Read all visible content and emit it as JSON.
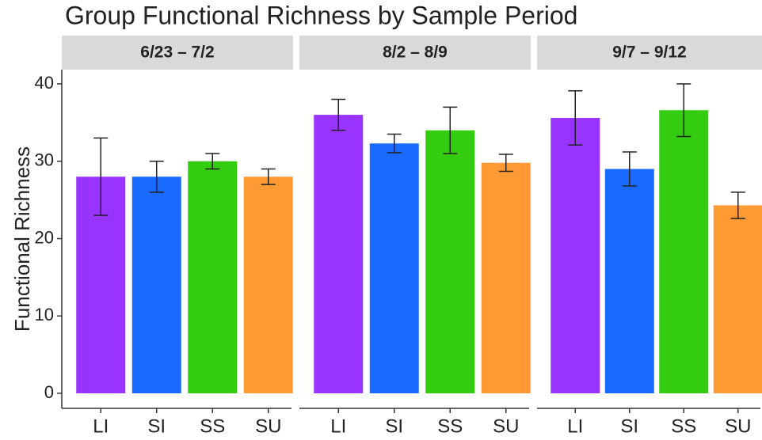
{
  "title": "Group Functional Richness by Sample Period",
  "y_label": "Functional Richness",
  "chart_data": [
    {
      "type": "bar",
      "title": "6/23 – 7/2",
      "categories": [
        "LI",
        "SI",
        "SS",
        "SU"
      ],
      "values": [
        28,
        28,
        30,
        28
      ],
      "errors": [
        5,
        2,
        1,
        1
      ],
      "colors": [
        "#9933ff",
        "#1a6aff",
        "#33cc11",
        "#ff9933"
      ],
      "ylim": [
        0,
        40
      ],
      "yticks": [
        0,
        10,
        20,
        30,
        40
      ]
    },
    {
      "type": "bar",
      "title": "8/2 – 8/9",
      "categories": [
        "LI",
        "SI",
        "SS",
        "SU"
      ],
      "values": [
        36,
        32.3,
        34,
        29.8
      ],
      "errors": [
        2,
        1.2,
        3,
        1.1
      ],
      "colors": [
        "#9933ff",
        "#1a6aff",
        "#33cc11",
        "#ff9933"
      ],
      "ylim": [
        0,
        40
      ]
    },
    {
      "type": "bar",
      "title": "9/7 – 9/12",
      "categories": [
        "LI",
        "SI",
        "SS",
        "SU"
      ],
      "values": [
        35.6,
        29,
        36.6,
        24.3
      ],
      "errors": [
        3.5,
        2.2,
        3.4,
        1.7
      ],
      "colors": [
        "#9933ff",
        "#1a6aff",
        "#33cc11",
        "#ff9933"
      ],
      "ylim": [
        0,
        40
      ]
    }
  ]
}
